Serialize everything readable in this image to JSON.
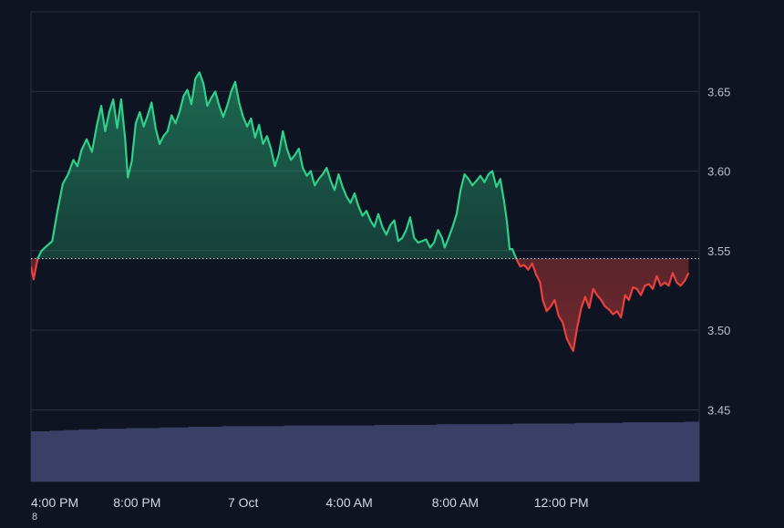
{
  "chart_data": {
    "type": "area",
    "baseline": 3.545,
    "ylim": [
      3.405,
      3.7
    ],
    "y_ticks": [
      {
        "value": 3.45,
        "label": "3.45"
      },
      {
        "value": 3.5,
        "label": "3.50"
      },
      {
        "value": 3.55,
        "label": "3.55"
      },
      {
        "value": 3.6,
        "label": "3.60"
      },
      {
        "value": 3.65,
        "label": "3.65"
      }
    ],
    "x_range_hours": [
      0,
      25.2
    ],
    "x_ticks": [
      {
        "hour": 0,
        "label": "4:00 PM"
      },
      {
        "hour": 4,
        "label": "8:00 PM"
      },
      {
        "hour": 8,
        "label": "7 Oct"
      },
      {
        "hour": 12,
        "label": "4:00 AM"
      },
      {
        "hour": 16,
        "label": "8:00 AM"
      },
      {
        "hour": 20,
        "label": "12:00 PM"
      }
    ],
    "series": [
      {
        "points": [
          [
            0.0,
            3.54
          ],
          [
            0.1,
            3.532
          ],
          [
            0.25,
            3.545
          ],
          [
            0.4,
            3.55
          ],
          [
            0.6,
            3.553
          ],
          [
            0.8,
            3.556
          ],
          [
            1.0,
            3.575
          ],
          [
            1.2,
            3.592
          ],
          [
            1.4,
            3.598
          ],
          [
            1.6,
            3.607
          ],
          [
            1.75,
            3.603
          ],
          [
            1.9,
            3.613
          ],
          [
            2.1,
            3.62
          ],
          [
            2.3,
            3.612
          ],
          [
            2.5,
            3.63
          ],
          [
            2.65,
            3.641
          ],
          [
            2.8,
            3.625
          ],
          [
            2.95,
            3.637
          ],
          [
            3.1,
            3.645
          ],
          [
            3.25,
            3.627
          ],
          [
            3.4,
            3.645
          ],
          [
            3.55,
            3.62
          ],
          [
            3.65,
            3.596
          ],
          [
            3.8,
            3.606
          ],
          [
            3.95,
            3.63
          ],
          [
            4.1,
            3.637
          ],
          [
            4.25,
            3.628
          ],
          [
            4.4,
            3.635
          ],
          [
            4.55,
            3.643
          ],
          [
            4.7,
            3.627
          ],
          [
            4.85,
            3.617
          ],
          [
            5.0,
            3.622
          ],
          [
            5.15,
            3.625
          ],
          [
            5.3,
            3.635
          ],
          [
            5.45,
            3.63
          ],
          [
            5.6,
            3.637
          ],
          [
            5.75,
            3.647
          ],
          [
            5.9,
            3.651
          ],
          [
            6.05,
            3.642
          ],
          [
            6.2,
            3.658
          ],
          [
            6.35,
            3.662
          ],
          [
            6.5,
            3.655
          ],
          [
            6.65,
            3.641
          ],
          [
            6.8,
            3.646
          ],
          [
            6.95,
            3.65
          ],
          [
            7.1,
            3.641
          ],
          [
            7.25,
            3.634
          ],
          [
            7.4,
            3.641
          ],
          [
            7.55,
            3.65
          ],
          [
            7.7,
            3.656
          ],
          [
            7.85,
            3.643
          ],
          [
            8.0,
            3.634
          ],
          [
            8.15,
            3.628
          ],
          [
            8.3,
            3.633
          ],
          [
            8.45,
            3.621
          ],
          [
            8.6,
            3.629
          ],
          [
            8.75,
            3.617
          ],
          [
            8.9,
            3.622
          ],
          [
            9.05,
            3.614
          ],
          [
            9.2,
            3.603
          ],
          [
            9.35,
            3.611
          ],
          [
            9.5,
            3.625
          ],
          [
            9.65,
            3.614
          ],
          [
            9.8,
            3.607
          ],
          [
            9.95,
            3.61
          ],
          [
            10.1,
            3.614
          ],
          [
            10.25,
            3.602
          ],
          [
            10.4,
            3.597
          ],
          [
            10.55,
            3.6
          ],
          [
            10.7,
            3.591
          ],
          [
            10.85,
            3.595
          ],
          [
            11.0,
            3.598
          ],
          [
            11.15,
            3.602
          ],
          [
            11.3,
            3.594
          ],
          [
            11.45,
            3.588
          ],
          [
            11.6,
            3.598
          ],
          [
            11.75,
            3.59
          ],
          [
            11.9,
            3.584
          ],
          [
            12.05,
            3.58
          ],
          [
            12.2,
            3.586
          ],
          [
            12.35,
            3.578
          ],
          [
            12.5,
            3.572
          ],
          [
            12.65,
            3.575
          ],
          [
            12.8,
            3.569
          ],
          [
            12.95,
            3.565
          ],
          [
            13.1,
            3.573
          ],
          [
            13.25,
            3.565
          ],
          [
            13.4,
            3.56
          ],
          [
            13.55,
            3.566
          ],
          [
            13.7,
            3.569
          ],
          [
            13.85,
            3.556
          ],
          [
            14.0,
            3.558
          ],
          [
            14.15,
            3.563
          ],
          [
            14.3,
            3.571
          ],
          [
            14.45,
            3.558
          ],
          [
            14.6,
            3.555
          ],
          [
            14.75,
            3.556
          ],
          [
            14.9,
            3.557
          ],
          [
            15.05,
            3.552
          ],
          [
            15.2,
            3.555
          ],
          [
            15.35,
            3.563
          ],
          [
            15.5,
            3.558
          ],
          [
            15.6,
            3.552
          ],
          [
            15.75,
            3.558
          ],
          [
            15.9,
            3.565
          ],
          [
            16.05,
            3.573
          ],
          [
            16.2,
            3.588
          ],
          [
            16.35,
            3.598
          ],
          [
            16.5,
            3.595
          ],
          [
            16.65,
            3.591
          ],
          [
            16.8,
            3.594
          ],
          [
            16.95,
            3.597
          ],
          [
            17.1,
            3.593
          ],
          [
            17.25,
            3.598
          ],
          [
            17.4,
            3.6
          ],
          [
            17.55,
            3.59
          ],
          [
            17.7,
            3.595
          ],
          [
            17.85,
            3.58
          ],
          [
            17.95,
            3.568
          ],
          [
            18.05,
            3.551
          ],
          [
            18.15,
            3.551
          ],
          [
            18.3,
            3.545
          ],
          [
            18.45,
            3.54
          ],
          [
            18.6,
            3.541
          ],
          [
            18.75,
            3.538
          ],
          [
            18.9,
            3.542
          ],
          [
            19.05,
            3.535
          ],
          [
            19.2,
            3.53
          ],
          [
            19.3,
            3.519
          ],
          [
            19.45,
            3.512
          ],
          [
            19.6,
            3.515
          ],
          [
            19.75,
            3.519
          ],
          [
            19.9,
            3.509
          ],
          [
            20.05,
            3.505
          ],
          [
            20.2,
            3.495
          ],
          [
            20.35,
            3.49
          ],
          [
            20.45,
            3.487
          ],
          [
            20.6,
            3.502
          ],
          [
            20.75,
            3.514
          ],
          [
            20.9,
            3.521
          ],
          [
            21.05,
            3.514
          ],
          [
            21.2,
            3.526
          ],
          [
            21.35,
            3.522
          ],
          [
            21.5,
            3.519
          ],
          [
            21.65,
            3.515
          ],
          [
            21.8,
            3.513
          ],
          [
            21.95,
            3.51
          ],
          [
            22.1,
            3.512
          ],
          [
            22.25,
            3.508
          ],
          [
            22.4,
            3.522
          ],
          [
            22.55,
            3.519
          ],
          [
            22.7,
            3.527
          ],
          [
            22.85,
            3.526
          ],
          [
            23.0,
            3.522
          ],
          [
            23.15,
            3.528
          ],
          [
            23.3,
            3.529
          ],
          [
            23.45,
            3.526
          ],
          [
            23.6,
            3.534
          ],
          [
            23.75,
            3.528
          ],
          [
            23.9,
            3.53
          ],
          [
            24.05,
            3.528
          ],
          [
            24.2,
            3.536
          ],
          [
            24.35,
            3.53
          ],
          [
            24.5,
            3.528
          ],
          [
            24.65,
            3.531
          ],
          [
            24.8,
            3.536
          ]
        ]
      }
    ],
    "volume": {
      "levels": [
        0.78,
        0.79,
        0.8,
        0.81,
        0.82,
        0.82,
        0.83,
        0.83,
        0.84,
        0.84,
        0.85,
        0.85,
        0.86,
        0.86,
        0.86,
        0.86,
        0.87,
        0.87,
        0.87,
        0.87,
        0.87,
        0.87,
        0.88,
        0.88,
        0.88,
        0.88,
        0.89,
        0.89,
        0.89,
        0.89,
        0.89,
        0.9,
        0.9,
        0.9,
        0.9,
        0.91,
        0.91,
        0.91,
        0.92,
        0.92,
        0.92,
        0.92,
        0.93
      ]
    },
    "colors": {
      "up": "#2fd08a",
      "down": "#e8413e",
      "volume": "#3a3f66",
      "grid": "#2a3142",
      "baseline_dots": "#d8dce3"
    },
    "grid": true
  },
  "footer_mark": "8"
}
